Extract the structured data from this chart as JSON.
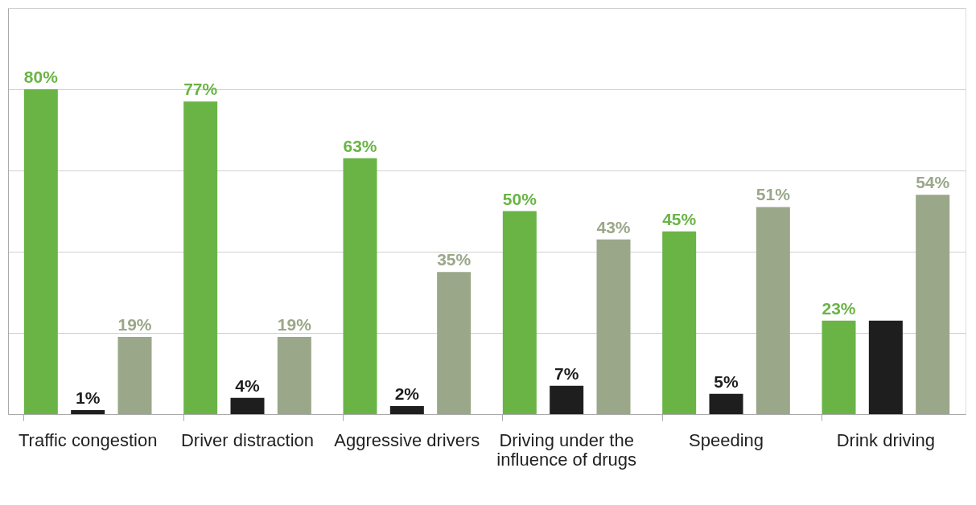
{
  "chart_data": {
    "type": "bar",
    "categories": [
      "Traffic congestion",
      "Driver distraction",
      "Aggressive drivers",
      "Driving under the influence of drugs",
      "Speeding",
      "Drink driving"
    ],
    "series": [
      {
        "color": "#6ab446",
        "values": [
          80,
          77,
          63,
          50,
          45,
          23
        ],
        "value_labels": [
          "80%",
          "77%",
          "63%",
          "50%",
          "45%",
          "23%"
        ]
      },
      {
        "color": "#1e1e1e",
        "values": [
          1,
          4,
          2,
          7,
          5,
          23
        ],
        "value_labels": [
          "1%",
          "4%",
          "2%",
          "7%",
          "5%",
          null
        ]
      },
      {
        "color": "#9aa789",
        "values": [
          19,
          19,
          35,
          43,
          51,
          54
        ],
        "value_labels": [
          "19%",
          "19%",
          "35%",
          "43%",
          "51%",
          "54%"
        ]
      }
    ],
    "ylim": [
      0,
      100
    ],
    "yticks": [
      {
        "value": 0,
        "label": null
      },
      {
        "value": 20,
        "label": null
      },
      {
        "value": 40,
        "label": null
      },
      {
        "value": 60,
        "label": null
      },
      {
        "value": 80,
        "label": null
      },
      {
        "value": 100,
        "label": null
      }
    ],
    "grid": "y",
    "tick_labels": "x",
    "legend": false
  }
}
